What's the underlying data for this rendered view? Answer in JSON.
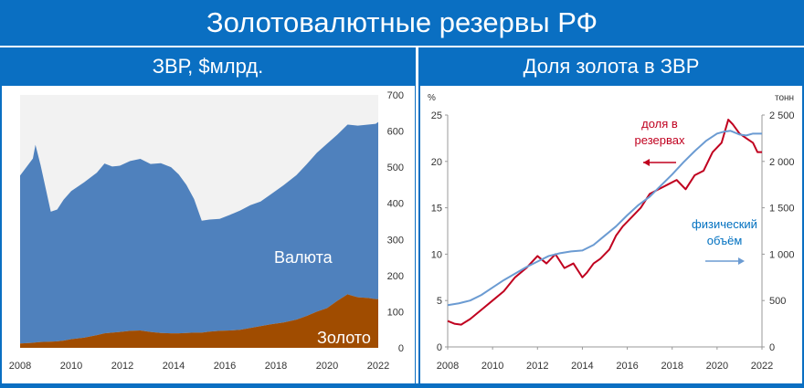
{
  "page": {
    "title": "Золотовалютные резервы РФ"
  },
  "left_chart": {
    "title": "ЗВР, $млрд."
  },
  "right_chart": {
    "title": "Доля золота в ЗВР"
  },
  "chart_data": [
    {
      "type": "area",
      "title": "ЗВР, $млрд.",
      "x_ticks": [
        "2008",
        "2010",
        "2012",
        "2014",
        "2016",
        "2018",
        "2020",
        "2022"
      ],
      "xlim": [
        2008,
        2022
      ],
      "y_ticks": [
        "0",
        "100",
        "200",
        "300",
        "400",
        "500",
        "600",
        "700"
      ],
      "ylim": [
        0,
        700
      ],
      "stacked": true,
      "x": [
        2008.0,
        2008.5,
        2008.6,
        2008.8,
        2009.2,
        2009.45,
        2009.7,
        2010.0,
        2010.5,
        2011.0,
        2011.3,
        2011.6,
        2011.9,
        2012.3,
        2012.7,
        2013.1,
        2013.5,
        2013.9,
        2014.2,
        2014.5,
        2014.8,
        2015.1,
        2015.4,
        2015.8,
        2016.2,
        2016.6,
        2017.0,
        2017.4,
        2017.8,
        2018.3,
        2018.8,
        2019.2,
        2019.6,
        2020.0,
        2020.4,
        2020.8,
        2021.2,
        2021.6,
        2021.9,
        2022.0
      ],
      "series": [
        {
          "name": "Валюта",
          "color": "#4f81bd",
          "values": [
            465,
            510,
            547,
            490,
            360,
            365,
            390,
            410,
            430,
            450,
            470,
            460,
            460,
            470,
            475,
            465,
            470,
            460,
            440,
            410,
            370,
            310,
            310,
            310,
            320,
            330,
            340,
            345,
            360,
            380,
            400,
            420,
            440,
            455,
            460,
            470,
            475,
            480,
            485,
            490
          ]
        },
        {
          "name": "Золото",
          "color": "#a04c00",
          "values": [
            12,
            14,
            15,
            16,
            17,
            18,
            20,
            24,
            28,
            35,
            40,
            42,
            44,
            47,
            48,
            44,
            41,
            40,
            40,
            41,
            42,
            42,
            45,
            47,
            48,
            50,
            55,
            60,
            65,
            70,
            78,
            88,
            100,
            110,
            130,
            148,
            140,
            138,
            135,
            135
          ]
        }
      ],
      "annotations": [
        "Валюта",
        "Золото"
      ]
    },
    {
      "type": "line",
      "title": "Доля золота в ЗВР",
      "x_ticks": [
        "2008",
        "2010",
        "2012",
        "2014",
        "2016",
        "2018",
        "2020",
        "2022"
      ],
      "xlim": [
        2008,
        2022
      ],
      "y_left": {
        "label": "%",
        "ticks": [
          "0",
          "5",
          "10",
          "15",
          "20",
          "25"
        ],
        "lim": [
          0,
          25
        ]
      },
      "y_right": {
        "label": "тонн",
        "ticks": [
          "0",
          "500",
          "1 000",
          "1 500",
          "2 000",
          "2 500"
        ],
        "lim": [
          0,
          2500
        ]
      },
      "series": [
        {
          "name": "доля в резервах",
          "color": "#c0001f",
          "axis": "left",
          "x": [
            2008.0,
            2008.3,
            2008.6,
            2009.0,
            2009.5,
            2010.0,
            2010.5,
            2011.0,
            2011.5,
            2012.0,
            2012.4,
            2012.8,
            2013.2,
            2013.6,
            2014.0,
            2014.2,
            2014.5,
            2014.8,
            2015.2,
            2015.5,
            2015.8,
            2016.2,
            2016.6,
            2017.0,
            2017.4,
            2017.8,
            2018.2,
            2018.6,
            2019.0,
            2019.4,
            2019.8,
            2020.2,
            2020.5,
            2020.7,
            2021.0,
            2021.3,
            2021.6,
            2021.8,
            2022.0
          ],
          "values": [
            2.8,
            2.5,
            2.4,
            3.0,
            4.0,
            5.0,
            6.0,
            7.5,
            8.5,
            9.8,
            9.0,
            10.0,
            8.5,
            9.0,
            7.5,
            8.0,
            9.0,
            9.5,
            10.5,
            12.0,
            13.0,
            14.0,
            15.0,
            16.5,
            17.0,
            17.5,
            18.0,
            17.0,
            18.5,
            19.0,
            21.0,
            22.0,
            24.5,
            24.0,
            23.0,
            22.5,
            22.0,
            21.0,
            21.0
          ]
        },
        {
          "name": "физический объём",
          "color": "#6b9bd2",
          "axis": "right",
          "x": [
            2008.0,
            2008.5,
            2009.0,
            2009.5,
            2010.0,
            2010.5,
            2011.0,
            2011.5,
            2012.0,
            2012.5,
            2013.0,
            2013.5,
            2014.0,
            2014.5,
            2015.0,
            2015.5,
            2016.0,
            2016.5,
            2017.0,
            2017.5,
            2018.0,
            2018.5,
            2019.0,
            2019.5,
            2020.0,
            2020.3,
            2020.6,
            2021.0,
            2021.3,
            2021.6,
            2022.0
          ],
          "values": [
            450,
            470,
            500,
            560,
            640,
            720,
            790,
            860,
            920,
            980,
            1010,
            1030,
            1040,
            1100,
            1200,
            1300,
            1420,
            1530,
            1620,
            1740,
            1860,
            1990,
            2110,
            2220,
            2300,
            2320,
            2330,
            2290,
            2280,
            2300,
            2300
          ]
        }
      ],
      "annotations": [
        {
          "text": [
            "доля в",
            "резервах"
          ],
          "color": "#c0001f"
        },
        {
          "text": [
            "физический",
            "объём"
          ],
          "color": "#0070c0"
        }
      ]
    }
  ]
}
